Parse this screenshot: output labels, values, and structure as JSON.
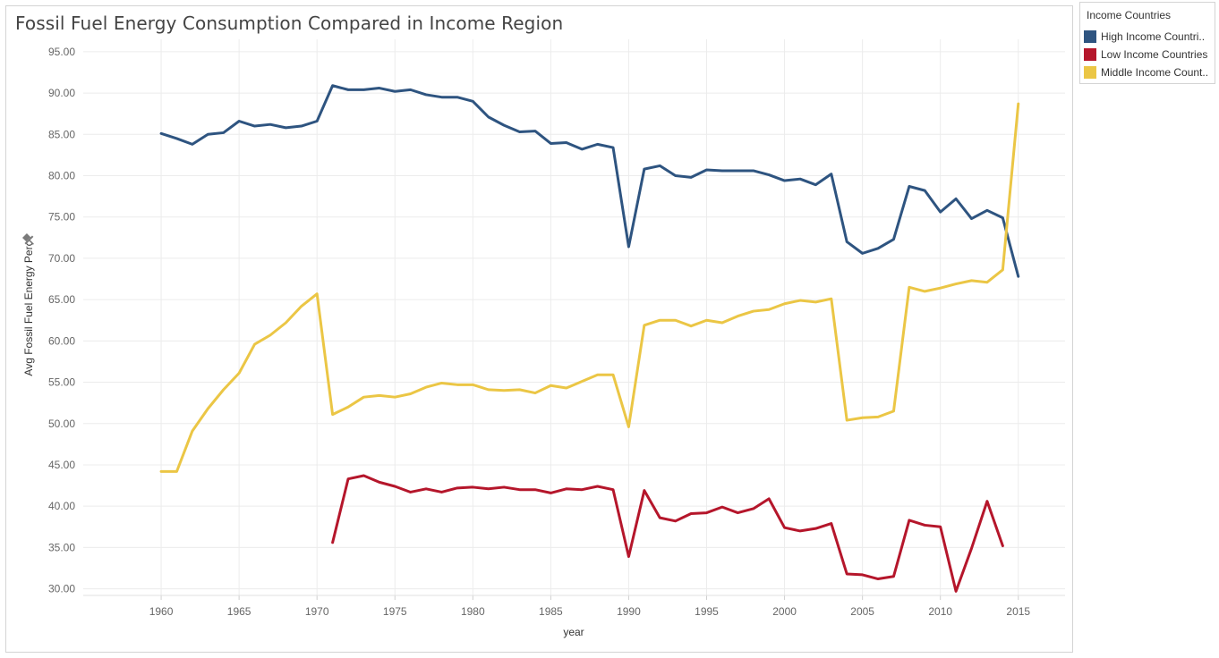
{
  "chart_data": {
    "type": "line",
    "title": "Fossil Fuel Energy Consumption Compared in Income Region",
    "xlabel": "year",
    "ylabel": "Avg Fossil Fuel Energy Perc",
    "xlim": [
      1955,
      2018
    ],
    "ylim": [
      29.2,
      96.5
    ],
    "x_ticks": [
      1960,
      1965,
      1970,
      1975,
      1980,
      1985,
      1990,
      1995,
      2000,
      2005,
      2010,
      2015
    ],
    "x_tick_labels": [
      "1960",
      "1965",
      "1970",
      "1975",
      "1980",
      "1985",
      "1990",
      "1995",
      "2000",
      "2005",
      "2010",
      "2015"
    ],
    "y_ticks": [
      30,
      35,
      40,
      45,
      50,
      55,
      60,
      65,
      70,
      75,
      80,
      85,
      90,
      95
    ],
    "y_tick_labels": [
      "30.00",
      "35.00",
      "40.00",
      "45.00",
      "50.00",
      "55.00",
      "60.00",
      "65.00",
      "70.00",
      "75.00",
      "80.00",
      "85.00",
      "90.00",
      "95.00"
    ],
    "grid": true,
    "legend": {
      "title": "Income Countries",
      "position": "top-right",
      "labels": [
        "High Income Countri..",
        "Low Income Countries",
        "Middle Income Count.."
      ]
    },
    "series": [
      {
        "name": "High Income Countries",
        "color": "#2e5480",
        "points": [
          [
            1960,
            85.1
          ],
          [
            1961,
            84.5
          ],
          [
            1962,
            83.8
          ],
          [
            1963,
            85.0
          ],
          [
            1964,
            85.2
          ],
          [
            1965,
            86.6
          ],
          [
            1966,
            86.0
          ],
          [
            1967,
            86.2
          ],
          [
            1968,
            85.8
          ],
          [
            1969,
            86.0
          ],
          [
            1970,
            86.6
          ],
          [
            1971,
            90.9
          ],
          [
            1972,
            90.4
          ],
          [
            1973,
            90.4
          ],
          [
            1974,
            90.6
          ],
          [
            1975,
            90.2
          ],
          [
            1976,
            90.4
          ],
          [
            1977,
            89.8
          ],
          [
            1978,
            89.5
          ],
          [
            1979,
            89.5
          ],
          [
            1980,
            89.0
          ],
          [
            1981,
            87.1
          ],
          [
            1982,
            86.1
          ],
          [
            1983,
            85.3
          ],
          [
            1984,
            85.4
          ],
          [
            1985,
            83.9
          ],
          [
            1986,
            84.0
          ],
          [
            1987,
            83.2
          ],
          [
            1988,
            83.8
          ],
          [
            1989,
            83.4
          ],
          [
            1990,
            71.4
          ],
          [
            1991,
            80.8
          ],
          [
            1992,
            81.2
          ],
          [
            1993,
            80.0
          ],
          [
            1994,
            79.8
          ],
          [
            1995,
            80.7
          ],
          [
            1996,
            80.6
          ],
          [
            1997,
            80.6
          ],
          [
            1998,
            80.6
          ],
          [
            1999,
            80.1
          ],
          [
            2000,
            79.4
          ],
          [
            2001,
            79.6
          ],
          [
            2002,
            78.9
          ],
          [
            2003,
            80.2
          ],
          [
            2004,
            72.0
          ],
          [
            2005,
            70.6
          ],
          [
            2006,
            71.2
          ],
          [
            2007,
            72.3
          ],
          [
            2008,
            78.7
          ],
          [
            2009,
            78.2
          ],
          [
            2010,
            75.6
          ],
          [
            2011,
            77.2
          ],
          [
            2012,
            74.8
          ],
          [
            2013,
            75.8
          ],
          [
            2014,
            74.9
          ],
          [
            2015,
            67.8
          ]
        ]
      },
      {
        "name": "Low Income Countries",
        "color": "#b5162b",
        "points": [
          [
            1971,
            35.6
          ],
          [
            1972,
            43.3
          ],
          [
            1973,
            43.7
          ],
          [
            1974,
            42.9
          ],
          [
            1975,
            42.4
          ],
          [
            1976,
            41.7
          ],
          [
            1977,
            42.1
          ],
          [
            1978,
            41.7
          ],
          [
            1979,
            42.2
          ],
          [
            1980,
            42.3
          ],
          [
            1981,
            42.1
          ],
          [
            1982,
            42.3
          ],
          [
            1983,
            42.0
          ],
          [
            1984,
            42.0
          ],
          [
            1985,
            41.6
          ],
          [
            1986,
            42.1
          ],
          [
            1987,
            42.0
          ],
          [
            1988,
            42.4
          ],
          [
            1989,
            42.0
          ],
          [
            1990,
            33.9
          ],
          [
            1991,
            41.9
          ],
          [
            1992,
            38.6
          ],
          [
            1993,
            38.2
          ],
          [
            1994,
            39.1
          ],
          [
            1995,
            39.2
          ],
          [
            1996,
            39.9
          ],
          [
            1997,
            39.2
          ],
          [
            1998,
            39.7
          ],
          [
            1999,
            40.9
          ],
          [
            2000,
            37.4
          ],
          [
            2001,
            37.0
          ],
          [
            2002,
            37.3
          ],
          [
            2003,
            37.9
          ],
          [
            2004,
            31.8
          ],
          [
            2005,
            31.7
          ],
          [
            2006,
            31.2
          ],
          [
            2007,
            31.5
          ],
          [
            2008,
            38.3
          ],
          [
            2009,
            37.7
          ],
          [
            2010,
            37.5
          ],
          [
            2011,
            29.7
          ],
          [
            2012,
            34.9
          ],
          [
            2013,
            40.6
          ],
          [
            2014,
            35.2
          ]
        ]
      },
      {
        "name": "Middle Income Countries",
        "color": "#ebc645",
        "points": [
          [
            1960,
            44.2
          ],
          [
            1961,
            44.2
          ],
          [
            1962,
            49.1
          ],
          [
            1963,
            51.8
          ],
          [
            1964,
            54.1
          ],
          [
            1965,
            56.1
          ],
          [
            1966,
            59.6
          ],
          [
            1967,
            60.7
          ],
          [
            1968,
            62.2
          ],
          [
            1969,
            64.2
          ],
          [
            1970,
            65.7
          ],
          [
            1971,
            51.1
          ],
          [
            1972,
            52.0
          ],
          [
            1973,
            53.2
          ],
          [
            1974,
            53.4
          ],
          [
            1975,
            53.2
          ],
          [
            1976,
            53.6
          ],
          [
            1977,
            54.4
          ],
          [
            1978,
            54.9
          ],
          [
            1979,
            54.7
          ],
          [
            1980,
            54.7
          ],
          [
            1981,
            54.1
          ],
          [
            1982,
            54.0
          ],
          [
            1983,
            54.1
          ],
          [
            1984,
            53.7
          ],
          [
            1985,
            54.6
          ],
          [
            1986,
            54.3
          ],
          [
            1987,
            55.1
          ],
          [
            1988,
            55.9
          ],
          [
            1989,
            55.9
          ],
          [
            1990,
            49.6
          ],
          [
            1991,
            61.9
          ],
          [
            1992,
            62.5
          ],
          [
            1993,
            62.5
          ],
          [
            1994,
            61.8
          ],
          [
            1995,
            62.5
          ],
          [
            1996,
            62.2
          ],
          [
            1997,
            63.0
          ],
          [
            1998,
            63.6
          ],
          [
            1999,
            63.8
          ],
          [
            2000,
            64.5
          ],
          [
            2001,
            64.9
          ],
          [
            2002,
            64.7
          ],
          [
            2003,
            65.1
          ],
          [
            2004,
            50.4
          ],
          [
            2005,
            50.7
          ],
          [
            2006,
            50.8
          ],
          [
            2007,
            51.5
          ],
          [
            2008,
            66.5
          ],
          [
            2009,
            66.0
          ],
          [
            2010,
            66.4
          ],
          [
            2011,
            66.9
          ],
          [
            2012,
            67.3
          ],
          [
            2013,
            67.1
          ],
          [
            2014,
            68.6
          ],
          [
            2015,
            88.7
          ]
        ]
      }
    ]
  },
  "colors": {
    "grid": "#ececec",
    "high": "#2e5480",
    "low": "#b5162b",
    "middle": "#ebc645"
  },
  "icons": {
    "pin": "pin-icon"
  }
}
